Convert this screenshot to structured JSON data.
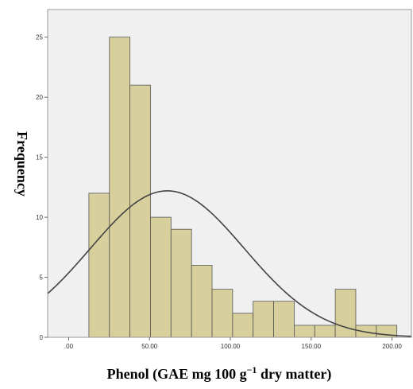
{
  "chart_data": {
    "type": "bar",
    "subtype": "histogram",
    "title": "",
    "xlabel": "Phenol (GAE mg 100 g",
    "xlabel_superscript": "−1",
    "xlabel_suffix": " dry matter)",
    "ylabel": "Frequency",
    "xlim": [
      -13,
      212
    ],
    "ylim": [
      0,
      27.3
    ],
    "bin_width": 12.7,
    "bin_starts": [
      12.5,
      25.2,
      37.9,
      50.6,
      63.3,
      76.0,
      88.7,
      101.4,
      114.1,
      126.8,
      139.5,
      152.2,
      164.9,
      177.6,
      190.3
    ],
    "values": [
      12,
      25,
      21,
      10,
      9,
      6,
      4,
      2,
      3,
      3,
      1,
      1,
      4,
      1,
      1
    ],
    "x_ticks": [
      0,
      50,
      100,
      150,
      200
    ],
    "x_tick_labels": [
      ".00",
      "50.00",
      "100.00",
      "150.00",
      "200.00"
    ],
    "y_ticks": [
      0,
      5,
      10,
      15,
      20,
      25
    ],
    "y_tick_labels": [
      "0",
      "5",
      "10",
      "15",
      "20",
      "25"
    ],
    "normal_curve": {
      "mean": 61,
      "sd": 47.6,
      "peak": 12.2
    },
    "grid": false,
    "legend": "none",
    "colors": {
      "bar_fill": "#d8d09c",
      "bar_stroke": "#555555",
      "plot_background": "#f0f0f0",
      "curve": "#444444",
      "frame": "#999999"
    }
  }
}
